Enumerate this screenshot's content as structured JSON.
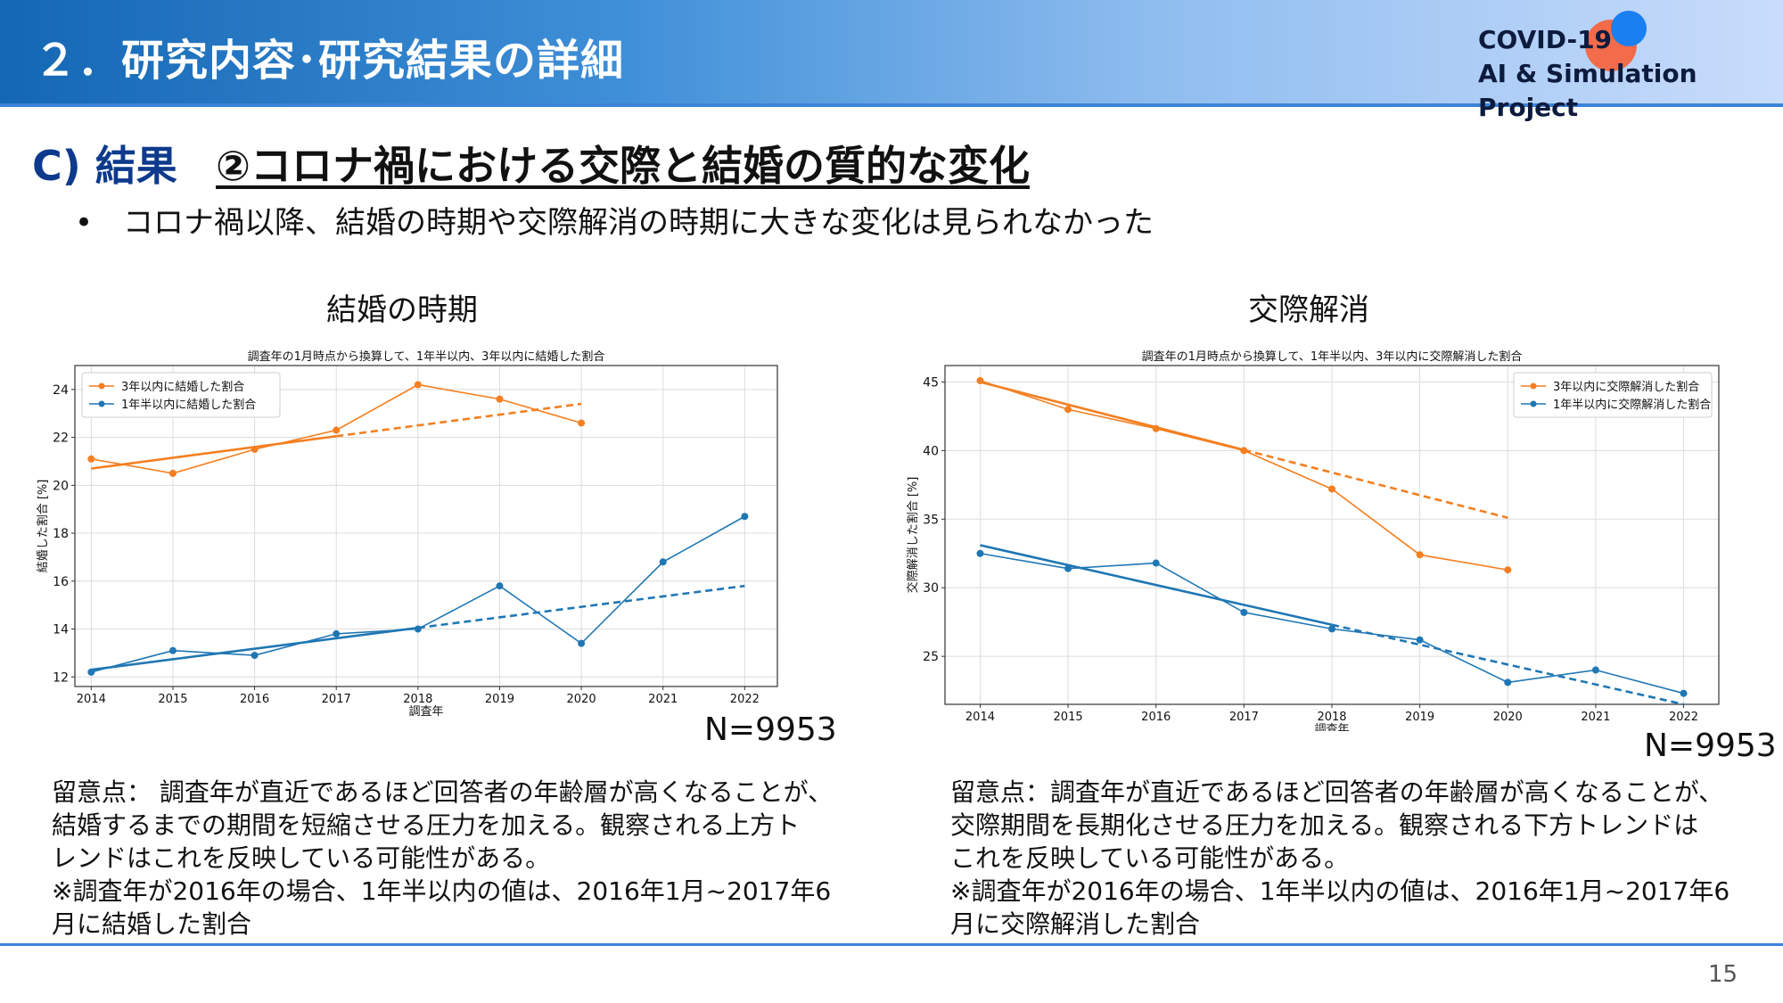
{
  "header": {
    "title": "２．研究内容･研究結果の詳細",
    "logo_line1": "COVID-19",
    "logo_line2": "AI & Simulation Project"
  },
  "section": {
    "label": "C) 結果",
    "subtitle": "②コロナ禍における交際と結婚の質的な変化"
  },
  "bullet": "•　コロナ禍以降、結婚の時期や交際解消の時期に大きな変化は見られなかった",
  "left": {
    "heading": "結婚の時期",
    "n": "N=9953",
    "note": [
      "留意点： 調査年が直近であるほど回答者の年齢層が高くなることが、",
      "結婚するまでの期間を短縮させる圧力を加える。観察される上方ト",
      "レンドはこれを反映している可能性がある。",
      "※調査年が2016年の場合、1年半以内の値は、2016年1月~2017年6",
      "月に結婚した割合"
    ]
  },
  "right": {
    "heading": "交際解消",
    "n": "N=9953",
    "note": [
      "留意点：調査年が直近であるほど回答者の年齢層が高くなることが、",
      "交際期間を長期化させる圧力を加える。観察される下方トレンドは",
      "これを反映している可能性がある。",
      "※調査年が2016年の場合、1年半以内の値は、2016年1月~2017年6",
      "月に交際解消した割合"
    ]
  },
  "page_number": "15",
  "colors": {
    "orange": "#f47f20",
    "blue": "#1f77b4"
  },
  "chart_data": [
    {
      "type": "line",
      "title": "調査年の1月時点から換算して、1年半以内、3年以内に結婚した割合",
      "xlabel": "調査年",
      "ylabel": "結婚した割合 [%]",
      "x": [
        2014,
        2015,
        2016,
        2017,
        2018,
        2019,
        2020,
        2021,
        2022
      ],
      "xlim": [
        2013.8,
        2022.4
      ],
      "ylim": [
        11.6,
        25.0
      ],
      "yticks": [
        12,
        14,
        16,
        18,
        20,
        22,
        24
      ],
      "legend_position": "top-left",
      "grid": true,
      "series": [
        {
          "name": "3年以内に結婚した割合",
          "color": "#f47f20",
          "x": [
            2014,
            2015,
            2016,
            2017,
            2018,
            2019,
            2020
          ],
          "values": [
            21.1,
            20.5,
            21.5,
            22.3,
            24.2,
            23.6,
            22.6
          ],
          "trend": {
            "x": [
              2014,
              2020
            ],
            "y": [
              20.7,
              23.4
            ],
            "solid_until": 2017
          }
        },
        {
          "name": "1年半以内に結婚した割合",
          "color": "#1f77b4",
          "x": [
            2014,
            2015,
            2016,
            2017,
            2018,
            2019,
            2020,
            2021,
            2022
          ],
          "values": [
            12.2,
            13.1,
            12.9,
            13.8,
            14.0,
            15.8,
            13.4,
            16.8,
            18.7
          ],
          "trend": {
            "x": [
              2014,
              2022
            ],
            "y": [
              12.3,
              15.8
            ],
            "solid_until": 2018
          }
        }
      ]
    },
    {
      "type": "line",
      "title": "調査年の1月時点から換算して、1年半以内、3年以内に交際解消した割合",
      "xlabel": "調査年",
      "ylabel": "交際解消した割合 [%]",
      "x": [
        2014,
        2015,
        2016,
        2017,
        2018,
        2019,
        2020,
        2021,
        2022
      ],
      "xlim": [
        2013.6,
        2022.4
      ],
      "ylim": [
        21.5,
        46.2
      ],
      "yticks": [
        25,
        30,
        35,
        40,
        45
      ],
      "legend_position": "top-right",
      "grid": true,
      "series": [
        {
          "name": "3年以内に交際解消した割合",
          "color": "#f47f20",
          "x": [
            2014,
            2015,
            2016,
            2017,
            2018,
            2019,
            2020
          ],
          "values": [
            45.1,
            43.0,
            41.6,
            40.0,
            37.2,
            32.4,
            31.3
          ],
          "trend": {
            "x": [
              2014,
              2020
            ],
            "y": [
              45.0,
              35.1
            ],
            "solid_until": 2017
          }
        },
        {
          "name": "1年半以内に交際解消した割合",
          "color": "#1f77b4",
          "x": [
            2014,
            2015,
            2016,
            2017,
            2018,
            2019,
            2020,
            2021,
            2022
          ],
          "values": [
            32.5,
            31.4,
            31.8,
            28.2,
            27.0,
            26.2,
            23.1,
            24.0,
            22.3
          ],
          "trend": {
            "x": [
              2014,
              2022
            ],
            "y": [
              33.1,
              21.5
            ],
            "solid_until": 2018
          }
        }
      ]
    }
  ]
}
